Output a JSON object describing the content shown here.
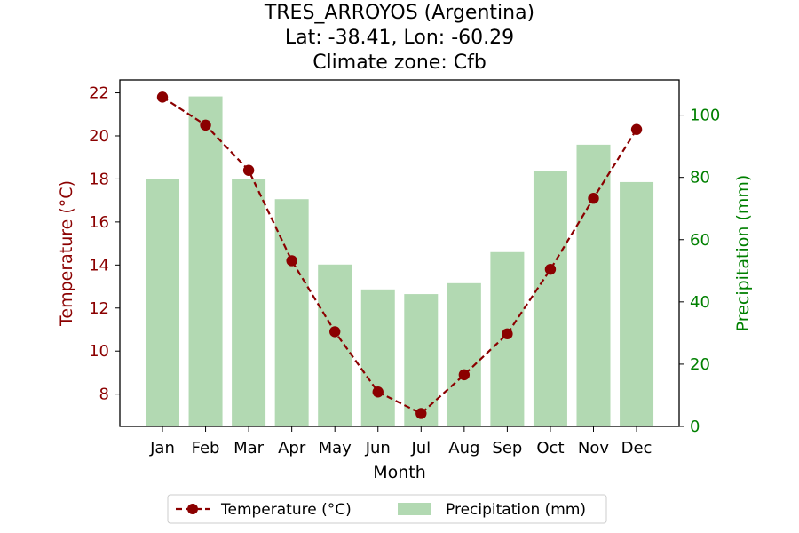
{
  "chart_data": {
    "type": "bar+line",
    "title_lines": [
      "TRES_ARROYOS (Argentina)",
      "Lat: -38.41, Lon: -60.29",
      "Climate zone: Cfb"
    ],
    "categories": [
      "Jan",
      "Feb",
      "Mar",
      "Apr",
      "May",
      "Jun",
      "Jul",
      "Aug",
      "Sep",
      "Oct",
      "Nov",
      "Dec"
    ],
    "xlabel": "Month",
    "series": [
      {
        "name": "Temperature (°C)",
        "kind": "line",
        "axis": "left",
        "color": "#8b0000",
        "values": [
          21.8,
          20.5,
          18.4,
          14.2,
          10.9,
          8.1,
          7.1,
          8.9,
          10.8,
          13.8,
          17.1,
          20.3
        ]
      },
      {
        "name": "Precipitation (mm)",
        "kind": "bar",
        "axis": "right",
        "color": "#b2d9b2",
        "values": [
          79.5,
          106.0,
          79.5,
          73.0,
          52.0,
          44.0,
          42.5,
          46.0,
          56.0,
          82.0,
          90.5,
          78.5
        ]
      }
    ],
    "y_left": {
      "label": "Temperature (°C)",
      "ylim": [
        6.5,
        22.6
      ],
      "ticks": [
        8,
        10,
        12,
        14,
        16,
        18,
        20,
        22
      ],
      "color": "#8b0000"
    },
    "y_right": {
      "label": "Precipitation (mm)",
      "ylim": [
        0,
        111.3
      ],
      "ticks": [
        0,
        20,
        40,
        60,
        80,
        100
      ],
      "color": "#008000"
    },
    "legend": {
      "placement": "bottom-center",
      "labels": [
        "Temperature (°C)",
        "Precipitation (mm)"
      ]
    },
    "grid": false
  }
}
